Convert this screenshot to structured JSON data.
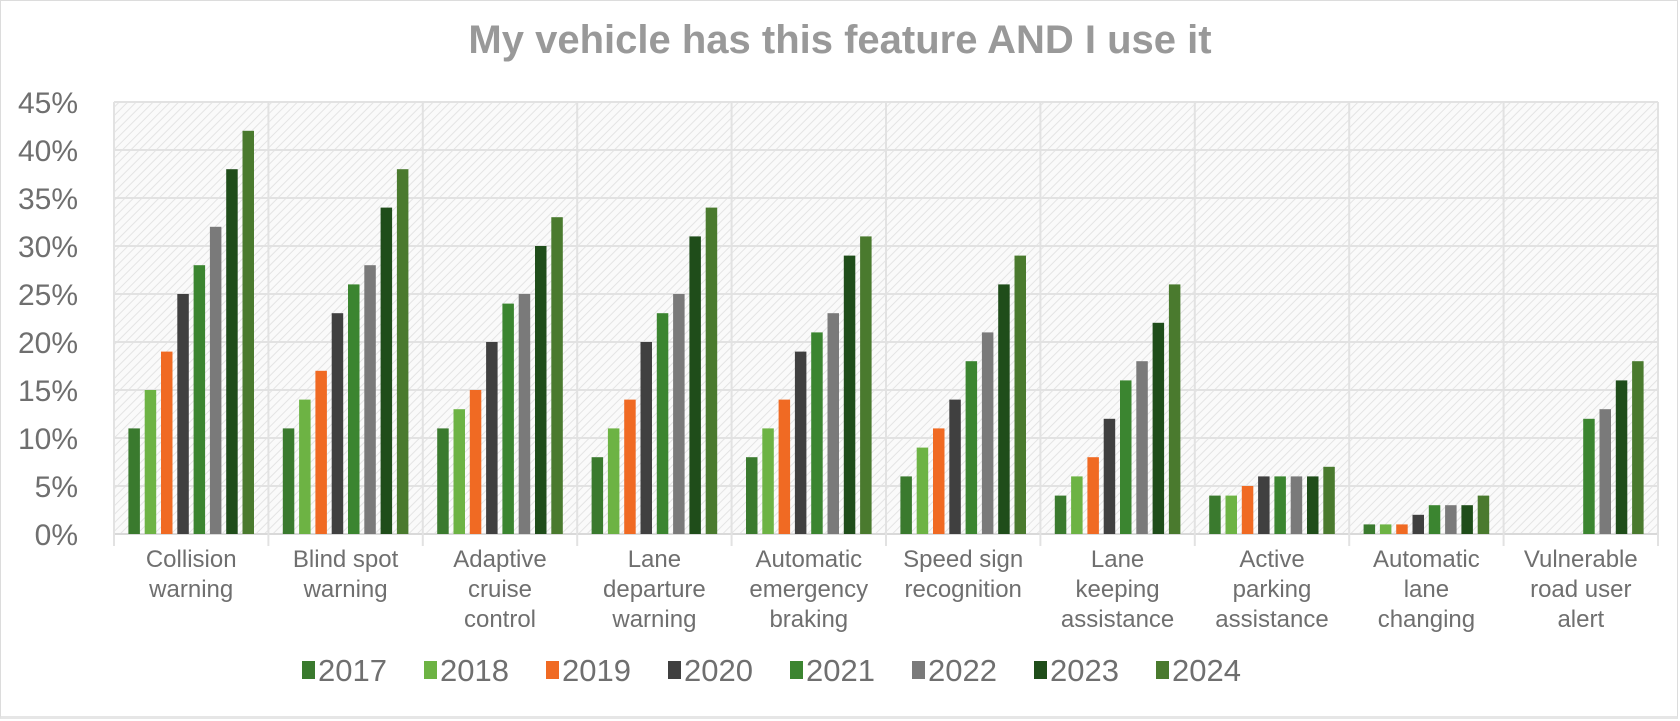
{
  "chart_data": {
    "type": "bar",
    "title": "My vehicle has this feature AND I use it",
    "xlabel": "",
    "ylabel": "",
    "ylim": [
      0,
      45
    ],
    "y_ticks": [
      "0%",
      "5%",
      "10%",
      "15%",
      "20%",
      "25%",
      "30%",
      "35%",
      "40%",
      "45%"
    ],
    "y_tick_values": [
      0,
      5,
      10,
      15,
      20,
      25,
      30,
      35,
      40,
      45
    ],
    "grid": true,
    "legend_position": "bottom",
    "categories": [
      [
        "Collision",
        "warning"
      ],
      [
        "Blind spot",
        "warning"
      ],
      [
        "Adaptive",
        "cruise",
        "control"
      ],
      [
        "Lane",
        "departure",
        "warning"
      ],
      [
        "Automatic",
        "emergency",
        "braking"
      ],
      [
        "Speed sign",
        "recognition"
      ],
      [
        "Lane",
        "keeping",
        "assistance"
      ],
      [
        "Active",
        "parking",
        "assistance"
      ],
      [
        "Automatic",
        "lane",
        "changing"
      ],
      [
        "Vulnerable",
        "road user",
        "alert"
      ]
    ],
    "series": [
      {
        "name": "2017",
        "color": "#3a7a2e",
        "values": [
          11,
          11,
          11,
          8,
          8,
          6,
          4,
          4,
          1,
          null
        ]
      },
      {
        "name": "2018",
        "color": "#6db344",
        "values": [
          15,
          14,
          13,
          11,
          11,
          9,
          6,
          4,
          1,
          null
        ]
      },
      {
        "name": "2019",
        "color": "#f06a23",
        "values": [
          19,
          17,
          15,
          14,
          14,
          11,
          8,
          5,
          1,
          null
        ]
      },
      {
        "name": "2020",
        "color": "#404040",
        "values": [
          25,
          23,
          20,
          20,
          19,
          14,
          12,
          6,
          2,
          null
        ]
      },
      {
        "name": "2021",
        "color": "#3b8530",
        "values": [
          28,
          26,
          24,
          23,
          21,
          18,
          16,
          6,
          3,
          12
        ]
      },
      {
        "name": "2022",
        "color": "#7a7a7a",
        "values": [
          32,
          28,
          25,
          25,
          23,
          21,
          18,
          6,
          3,
          13
        ]
      },
      {
        "name": "2023",
        "color": "#1f4d1a",
        "values": [
          38,
          34,
          30,
          31,
          29,
          26,
          22,
          6,
          3,
          16
        ]
      },
      {
        "name": "2024",
        "color": "#4a7a2e",
        "values": [
          42,
          38,
          33,
          34,
          31,
          29,
          26,
          7,
          4,
          18
        ]
      }
    ]
  }
}
